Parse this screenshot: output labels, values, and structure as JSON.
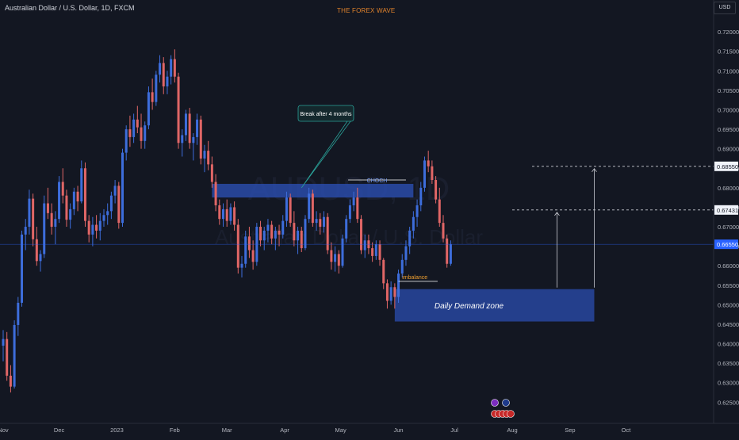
{
  "header": {
    "symbol_title": "Australian Dollar / U.S. Dollar, 1D, FXCM",
    "brand": "THE FOREX WAVE",
    "currency": "USD"
  },
  "watermark": {
    "ticker": "AUDUSD, 1D",
    "name": "Australian Dollar / U.S. Dollar"
  },
  "colors": {
    "background": "#131722",
    "bull": "#3d6ddb",
    "bear": "#e06666",
    "zone": "#2b4fb5",
    "axis_text": "#b2b5be",
    "last_price": "#2962ff"
  },
  "chart_data": {
    "type": "candlestick",
    "symbol": "AUDUSD",
    "timeframe": "1D",
    "x_axis": {
      "tick_labels": [
        "Nov",
        "Dec",
        "2023",
        "Feb",
        "Mar",
        "Apr",
        "May",
        "Jun",
        "Jul",
        "Aug",
        "Sep",
        "Oct"
      ],
      "range": [
        "2022-11-01",
        "2023-10-31"
      ]
    },
    "y_axis": {
      "range": [
        0.621,
        0.7245
      ],
      "tick_labels": [
        "0.72000",
        "0.71500",
        "0.71000",
        "0.70500",
        "0.70000",
        "0.69500",
        "0.69000",
        "0.68500",
        "0.68000",
        "0.67500",
        "0.67000",
        "0.66500",
        "0.66000",
        "0.65500",
        "0.65000",
        "0.64500",
        "0.64000",
        "0.63500",
        "0.63000",
        "0.62500"
      ],
      "last_price": "0.66550",
      "marked_prices": [
        "0.68550",
        "0.67431"
      ]
    },
    "candles": [
      {
        "date": "2022-11-01",
        "o": 0.6395,
        "h": 0.6435,
        "l": 0.6355,
        "c": 0.6412
      },
      {
        "date": "2022-11-03",
        "o": 0.6412,
        "h": 0.643,
        "l": 0.6305,
        "c": 0.6318
      },
      {
        "date": "2022-11-05",
        "o": 0.6318,
        "h": 0.6345,
        "l": 0.6275,
        "c": 0.629
      },
      {
        "date": "2022-11-07",
        "o": 0.629,
        "h": 0.646,
        "l": 0.6285,
        "c": 0.6448
      },
      {
        "date": "2022-11-09",
        "o": 0.6448,
        "h": 0.652,
        "l": 0.642,
        "c": 0.6505
      },
      {
        "date": "2022-11-11",
        "o": 0.6505,
        "h": 0.669,
        "l": 0.6495,
        "c": 0.668
      },
      {
        "date": "2022-11-13",
        "o": 0.668,
        "h": 0.672,
        "l": 0.664,
        "c": 0.67
      },
      {
        "date": "2022-11-15",
        "o": 0.67,
        "h": 0.6795,
        "l": 0.668,
        "c": 0.6772
      },
      {
        "date": "2022-11-17",
        "o": 0.6772,
        "h": 0.6785,
        "l": 0.665,
        "c": 0.6668
      },
      {
        "date": "2022-11-19",
        "o": 0.6668,
        "h": 0.67,
        "l": 0.66,
        "c": 0.6612
      },
      {
        "date": "2022-11-21",
        "o": 0.6612,
        "h": 0.664,
        "l": 0.6585,
        "c": 0.663
      },
      {
        "date": "2022-11-23",
        "o": 0.663,
        "h": 0.678,
        "l": 0.662,
        "c": 0.676
      },
      {
        "date": "2022-11-25",
        "o": 0.676,
        "h": 0.68,
        "l": 0.672,
        "c": 0.6735
      },
      {
        "date": "2022-11-27",
        "o": 0.6735,
        "h": 0.676,
        "l": 0.668,
        "c": 0.67
      },
      {
        "date": "2022-11-29",
        "o": 0.67,
        "h": 0.674,
        "l": 0.6655,
        "c": 0.672
      },
      {
        "date": "2022-12-01",
        "o": 0.672,
        "h": 0.683,
        "l": 0.671,
        "c": 0.6815
      },
      {
        "date": "2022-12-03",
        "o": 0.6815,
        "h": 0.685,
        "l": 0.676,
        "c": 0.678
      },
      {
        "date": "2022-12-05",
        "o": 0.678,
        "h": 0.6795,
        "l": 0.67,
        "c": 0.6718
      },
      {
        "date": "2022-12-07",
        "o": 0.6718,
        "h": 0.676,
        "l": 0.6695,
        "c": 0.6745
      },
      {
        "date": "2022-12-09",
        "o": 0.6745,
        "h": 0.68,
        "l": 0.673,
        "c": 0.679
      },
      {
        "date": "2022-12-11",
        "o": 0.679,
        "h": 0.6805,
        "l": 0.674,
        "c": 0.6765
      },
      {
        "date": "2022-12-13",
        "o": 0.6765,
        "h": 0.687,
        "l": 0.676,
        "c": 0.685
      },
      {
        "date": "2022-12-15",
        "o": 0.685,
        "h": 0.6865,
        "l": 0.67,
        "c": 0.6715
      },
      {
        "date": "2022-12-17",
        "o": 0.6715,
        "h": 0.673,
        "l": 0.666,
        "c": 0.668
      },
      {
        "date": "2022-12-19",
        "o": 0.668,
        "h": 0.6725,
        "l": 0.665,
        "c": 0.6705
      },
      {
        "date": "2022-12-21",
        "o": 0.6705,
        "h": 0.673,
        "l": 0.667,
        "c": 0.669
      },
      {
        "date": "2022-12-23",
        "o": 0.669,
        "h": 0.6735,
        "l": 0.6665,
        "c": 0.6715
      },
      {
        "date": "2022-12-25",
        "o": 0.6715,
        "h": 0.6745,
        "l": 0.67,
        "c": 0.673
      },
      {
        "date": "2022-12-27",
        "o": 0.673,
        "h": 0.676,
        "l": 0.6705,
        "c": 0.674
      },
      {
        "date": "2022-12-29",
        "o": 0.674,
        "h": 0.679,
        "l": 0.672,
        "c": 0.678
      },
      {
        "date": "2022-12-31",
        "o": 0.678,
        "h": 0.682,
        "l": 0.676,
        "c": 0.6805
      },
      {
        "date": "2023-01-02",
        "o": 0.6805,
        "h": 0.6815,
        "l": 0.6695,
        "c": 0.671
      },
      {
        "date": "2023-01-04",
        "o": 0.671,
        "h": 0.69,
        "l": 0.67,
        "c": 0.689
      },
      {
        "date": "2023-01-06",
        "o": 0.689,
        "h": 0.696,
        "l": 0.687,
        "c": 0.695
      },
      {
        "date": "2023-01-08",
        "o": 0.695,
        "h": 0.6985,
        "l": 0.6905,
        "c": 0.693
      },
      {
        "date": "2023-01-10",
        "o": 0.693,
        "h": 0.699,
        "l": 0.6915,
        "c": 0.6975
      },
      {
        "date": "2023-01-12",
        "o": 0.6975,
        "h": 0.701,
        "l": 0.694,
        "c": 0.6955
      },
      {
        "date": "2023-01-14",
        "o": 0.6955,
        "h": 0.699,
        "l": 0.69,
        "c": 0.692
      },
      {
        "date": "2023-01-16",
        "o": 0.692,
        "h": 0.697,
        "l": 0.69,
        "c": 0.696
      },
      {
        "date": "2023-01-18",
        "o": 0.696,
        "h": 0.706,
        "l": 0.695,
        "c": 0.7045
      },
      {
        "date": "2023-01-20",
        "o": 0.7045,
        "h": 0.708,
        "l": 0.7,
        "c": 0.702
      },
      {
        "date": "2023-01-22",
        "o": 0.702,
        "h": 0.71,
        "l": 0.701,
        "c": 0.709
      },
      {
        "date": "2023-01-24",
        "o": 0.709,
        "h": 0.714,
        "l": 0.707,
        "c": 0.712
      },
      {
        "date": "2023-01-26",
        "o": 0.712,
        "h": 0.7135,
        "l": 0.704,
        "c": 0.706
      },
      {
        "date": "2023-01-28",
        "o": 0.706,
        "h": 0.71,
        "l": 0.704,
        "c": 0.7085
      },
      {
        "date": "2023-01-30",
        "o": 0.7085,
        "h": 0.714,
        "l": 0.7065,
        "c": 0.713
      },
      {
        "date": "2023-02-01",
        "o": 0.713,
        "h": 0.7155,
        "l": 0.707,
        "c": 0.7085
      },
      {
        "date": "2023-02-03",
        "o": 0.7085,
        "h": 0.7095,
        "l": 0.69,
        "c": 0.6915
      },
      {
        "date": "2023-02-05",
        "o": 0.6915,
        "h": 0.695,
        "l": 0.688,
        "c": 0.6935
      },
      {
        "date": "2023-02-07",
        "o": 0.6935,
        "h": 0.7,
        "l": 0.692,
        "c": 0.699
      },
      {
        "date": "2023-02-09",
        "o": 0.699,
        "h": 0.7005,
        "l": 0.69,
        "c": 0.6915
      },
      {
        "date": "2023-02-11",
        "o": 0.6915,
        "h": 0.694,
        "l": 0.687,
        "c": 0.693
      },
      {
        "date": "2023-02-13",
        "o": 0.693,
        "h": 0.699,
        "l": 0.691,
        "c": 0.6975
      },
      {
        "date": "2023-02-15",
        "o": 0.6975,
        "h": 0.6985,
        "l": 0.686,
        "c": 0.6875
      },
      {
        "date": "2023-02-17",
        "o": 0.6875,
        "h": 0.691,
        "l": 0.684,
        "c": 0.6895
      },
      {
        "date": "2023-02-19",
        "o": 0.6895,
        "h": 0.692,
        "l": 0.6845,
        "c": 0.686
      },
      {
        "date": "2023-02-21",
        "o": 0.686,
        "h": 0.688,
        "l": 0.68,
        "c": 0.6815
      },
      {
        "date": "2023-02-23",
        "o": 0.6815,
        "h": 0.6835,
        "l": 0.674,
        "c": 0.6755
      },
      {
        "date": "2023-02-25",
        "o": 0.6755,
        "h": 0.677,
        "l": 0.6705,
        "c": 0.672
      },
      {
        "date": "2023-02-27",
        "o": 0.672,
        "h": 0.676,
        "l": 0.67,
        "c": 0.6745
      },
      {
        "date": "2023-03-01",
        "o": 0.6745,
        "h": 0.677,
        "l": 0.67,
        "c": 0.6715
      },
      {
        "date": "2023-03-03",
        "o": 0.6715,
        "h": 0.676,
        "l": 0.6705,
        "c": 0.675
      },
      {
        "date": "2023-03-05",
        "o": 0.675,
        "h": 0.6765,
        "l": 0.669,
        "c": 0.6705
      },
      {
        "date": "2023-03-07",
        "o": 0.6705,
        "h": 0.672,
        "l": 0.658,
        "c": 0.6595
      },
      {
        "date": "2023-03-09",
        "o": 0.6595,
        "h": 0.6625,
        "l": 0.657,
        "c": 0.6605
      },
      {
        "date": "2023-03-11",
        "o": 0.6605,
        "h": 0.669,
        "l": 0.6595,
        "c": 0.6675
      },
      {
        "date": "2023-03-13",
        "o": 0.6675,
        "h": 0.67,
        "l": 0.662,
        "c": 0.664
      },
      {
        "date": "2023-03-15",
        "o": 0.664,
        "h": 0.6665,
        "l": 0.659,
        "c": 0.661
      },
      {
        "date": "2023-03-17",
        "o": 0.661,
        "h": 0.671,
        "l": 0.66,
        "c": 0.67
      },
      {
        "date": "2023-03-19",
        "o": 0.67,
        "h": 0.6715,
        "l": 0.665,
        "c": 0.6665
      },
      {
        "date": "2023-03-21",
        "o": 0.6665,
        "h": 0.67,
        "l": 0.664,
        "c": 0.669
      },
      {
        "date": "2023-03-23",
        "o": 0.669,
        "h": 0.672,
        "l": 0.666,
        "c": 0.6705
      },
      {
        "date": "2023-03-25",
        "o": 0.6705,
        "h": 0.6715,
        "l": 0.6655,
        "c": 0.667
      },
      {
        "date": "2023-03-27",
        "o": 0.667,
        "h": 0.67,
        "l": 0.664,
        "c": 0.669
      },
      {
        "date": "2023-03-29",
        "o": 0.669,
        "h": 0.6705,
        "l": 0.665,
        "c": 0.668
      },
      {
        "date": "2023-03-31",
        "o": 0.668,
        "h": 0.673,
        "l": 0.667,
        "c": 0.6715
      },
      {
        "date": "2023-04-02",
        "o": 0.6715,
        "h": 0.679,
        "l": 0.67,
        "c": 0.6775
      },
      {
        "date": "2023-04-04",
        "o": 0.6775,
        "h": 0.6785,
        "l": 0.67,
        "c": 0.671
      },
      {
        "date": "2023-04-06",
        "o": 0.671,
        "h": 0.674,
        "l": 0.665,
        "c": 0.6665
      },
      {
        "date": "2023-04-08",
        "o": 0.6665,
        "h": 0.67,
        "l": 0.663,
        "c": 0.669
      },
      {
        "date": "2023-04-10",
        "o": 0.669,
        "h": 0.67,
        "l": 0.6635,
        "c": 0.6645
      },
      {
        "date": "2023-04-12",
        "o": 0.6645,
        "h": 0.673,
        "l": 0.664,
        "c": 0.672
      },
      {
        "date": "2023-04-14",
        "o": 0.672,
        "h": 0.68,
        "l": 0.671,
        "c": 0.6785
      },
      {
        "date": "2023-04-16",
        "o": 0.6785,
        "h": 0.6795,
        "l": 0.67,
        "c": 0.671
      },
      {
        "date": "2023-04-18",
        "o": 0.671,
        "h": 0.674,
        "l": 0.669,
        "c": 0.672
      },
      {
        "date": "2023-04-20",
        "o": 0.672,
        "h": 0.6735,
        "l": 0.668,
        "c": 0.67
      },
      {
        "date": "2023-04-22",
        "o": 0.67,
        "h": 0.674,
        "l": 0.6685,
        "c": 0.6725
      },
      {
        "date": "2023-04-24",
        "o": 0.6725,
        "h": 0.6735,
        "l": 0.663,
        "c": 0.664
      },
      {
        "date": "2023-04-26",
        "o": 0.664,
        "h": 0.666,
        "l": 0.659,
        "c": 0.661
      },
      {
        "date": "2023-04-28",
        "o": 0.661,
        "h": 0.665,
        "l": 0.6585,
        "c": 0.663
      },
      {
        "date": "2023-04-30",
        "o": 0.663,
        "h": 0.664,
        "l": 0.658,
        "c": 0.66
      },
      {
        "date": "2023-05-02",
        "o": 0.66,
        "h": 0.668,
        "l": 0.6595,
        "c": 0.667
      },
      {
        "date": "2023-05-04",
        "o": 0.667,
        "h": 0.673,
        "l": 0.666,
        "c": 0.672
      },
      {
        "date": "2023-05-06",
        "o": 0.672,
        "h": 0.677,
        "l": 0.671,
        "c": 0.6755
      },
      {
        "date": "2023-05-08",
        "o": 0.6755,
        "h": 0.679,
        "l": 0.674,
        "c": 0.6775
      },
      {
        "date": "2023-05-10",
        "o": 0.6775,
        "h": 0.68,
        "l": 0.671,
        "c": 0.672
      },
      {
        "date": "2023-05-12",
        "o": 0.672,
        "h": 0.673,
        "l": 0.663,
        "c": 0.664
      },
      {
        "date": "2023-05-14",
        "o": 0.664,
        "h": 0.668,
        "l": 0.662,
        "c": 0.6665
      },
      {
        "date": "2023-05-16",
        "o": 0.6665,
        "h": 0.668,
        "l": 0.663,
        "c": 0.6645
      },
      {
        "date": "2023-05-18",
        "o": 0.6645,
        "h": 0.666,
        "l": 0.661,
        "c": 0.6625
      },
      {
        "date": "2023-05-20",
        "o": 0.6625,
        "h": 0.6665,
        "l": 0.6615,
        "c": 0.6655
      },
      {
        "date": "2023-05-22",
        "o": 0.6655,
        "h": 0.6665,
        "l": 0.66,
        "c": 0.6615
      },
      {
        "date": "2023-05-24",
        "o": 0.6615,
        "h": 0.662,
        "l": 0.654,
        "c": 0.6555
      },
      {
        "date": "2023-05-26",
        "o": 0.6555,
        "h": 0.6565,
        "l": 0.649,
        "c": 0.651
      },
      {
        "date": "2023-05-28",
        "o": 0.651,
        "h": 0.656,
        "l": 0.65,
        "c": 0.6545
      },
      {
        "date": "2023-05-30",
        "o": 0.6545,
        "h": 0.6555,
        "l": 0.649,
        "c": 0.652
      },
      {
        "date": "2023-06-01",
        "o": 0.652,
        "h": 0.659,
        "l": 0.6505,
        "c": 0.658
      },
      {
        "date": "2023-06-03",
        "o": 0.658,
        "h": 0.663,
        "l": 0.657,
        "c": 0.6615
      },
      {
        "date": "2023-06-05",
        "o": 0.6615,
        "h": 0.6665,
        "l": 0.66,
        "c": 0.665
      },
      {
        "date": "2023-06-07",
        "o": 0.665,
        "h": 0.67,
        "l": 0.663,
        "c": 0.669
      },
      {
        "date": "2023-06-09",
        "o": 0.669,
        "h": 0.674,
        "l": 0.667,
        "c": 0.6725
      },
      {
        "date": "2023-06-11",
        "o": 0.6725,
        "h": 0.677,
        "l": 0.67,
        "c": 0.6755
      },
      {
        "date": "2023-06-13",
        "o": 0.6755,
        "h": 0.6815,
        "l": 0.674,
        "c": 0.68
      },
      {
        "date": "2023-06-15",
        "o": 0.68,
        "h": 0.688,
        "l": 0.679,
        "c": 0.687
      },
      {
        "date": "2023-06-17",
        "o": 0.687,
        "h": 0.6895,
        "l": 0.684,
        "c": 0.6855
      },
      {
        "date": "2023-06-19",
        "o": 0.6855,
        "h": 0.687,
        "l": 0.681,
        "c": 0.682
      },
      {
        "date": "2023-06-21",
        "o": 0.682,
        "h": 0.683,
        "l": 0.676,
        "c": 0.677
      },
      {
        "date": "2023-06-23",
        "o": 0.677,
        "h": 0.68,
        "l": 0.67,
        "c": 0.671
      },
      {
        "date": "2023-06-25",
        "o": 0.671,
        "h": 0.673,
        "l": 0.666,
        "c": 0.667
      },
      {
        "date": "2023-06-27",
        "o": 0.667,
        "h": 0.668,
        "l": 0.6595,
        "c": 0.6605
      },
      {
        "date": "2023-06-29",
        "o": 0.6605,
        "h": 0.6665,
        "l": 0.66,
        "c": 0.6655
      }
    ],
    "zones": [
      {
        "label": "",
        "from": "2023-02-21",
        "to": "2023-06-09",
        "top": 0.681,
        "bottom": 0.6775
      },
      {
        "label": "Daily Demand zone",
        "from": "2023-05-30",
        "to": "2023-09-14",
        "top": 0.654,
        "bottom": 0.6457
      }
    ],
    "levels": [
      {
        "price": 0.6855,
        "from": "2023-08-01",
        "label": "0.68550"
      },
      {
        "price": 0.67431,
        "from": "2023-08-01",
        "label": "0.67431"
      }
    ],
    "annotations": [
      {
        "text": "Break after 4 months",
        "type": "callout"
      },
      {
        "text": "CHOCH",
        "type": "label"
      },
      {
        "text": "imbalance",
        "type": "label"
      }
    ]
  }
}
